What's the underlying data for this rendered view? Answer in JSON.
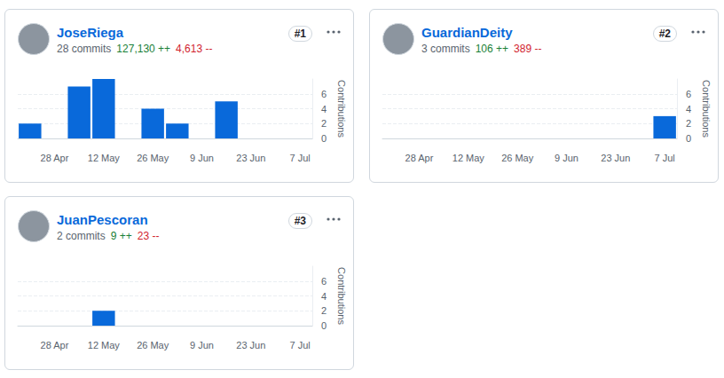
{
  "chart_data": [
    {
      "type": "bar",
      "title": "JoseRiega",
      "subtitle": "28 commits",
      "rank": "#1",
      "annotations": [
        {
          "text": "127,130 ++",
          "color": "#1a7f37"
        },
        {
          "text": "4,613 --",
          "color": "#d1242f"
        }
      ],
      "y_label": "Contributions",
      "categories": [
        null,
        "28 Apr",
        null,
        "12 May",
        null,
        "26 May",
        null,
        "9 Jun",
        null,
        "23 Jun",
        null,
        "7 Jul"
      ],
      "values": [
        2,
        0,
        7,
        8,
        0,
        4,
        2,
        0,
        5,
        0,
        0,
        0
      ],
      "color": "#0969da",
      "ylim": [
        0,
        8
      ],
      "yticks": [
        0,
        2,
        4,
        6
      ],
      "grid": true
    },
    {
      "type": "bar",
      "title": "GuardianDeity",
      "subtitle": "3 commits",
      "rank": "#2",
      "annotations": [
        {
          "text": "106 ++",
          "color": "#1a7f37"
        },
        {
          "text": "389 --",
          "color": "#d1242f"
        }
      ],
      "y_label": "Contributions",
      "categories": [
        null,
        "28 Apr",
        null,
        "12 May",
        null,
        "26 May",
        null,
        "9 Jun",
        null,
        "23 Jun",
        null,
        "7 Jul"
      ],
      "values": [
        0,
        0,
        0,
        0,
        0,
        0,
        0,
        0,
        0,
        0,
        0,
        3
      ],
      "color": "#0969da",
      "ylim": [
        0,
        8
      ],
      "yticks": [
        0,
        2,
        4,
        6
      ],
      "grid": true
    },
    {
      "type": "bar",
      "title": "JuanPescoran",
      "subtitle": "2 commits",
      "rank": "#3",
      "annotations": [
        {
          "text": "9 ++",
          "color": "#1a7f37"
        },
        {
          "text": "23 --",
          "color": "#d1242f"
        }
      ],
      "y_label": "Contributions",
      "categories": [
        null,
        "28 Apr",
        null,
        "12 May",
        null,
        "26 May",
        null,
        "9 Jun",
        null,
        "23 Jun",
        null,
        "7 Jul"
      ],
      "values": [
        0,
        0,
        0,
        2,
        0,
        0,
        0,
        0,
        0,
        0,
        0,
        0
      ],
      "color": "#0969da",
      "ylim": [
        0,
        8
      ],
      "yticks": [
        0,
        2,
        4,
        6
      ],
      "grid": true
    }
  ]
}
